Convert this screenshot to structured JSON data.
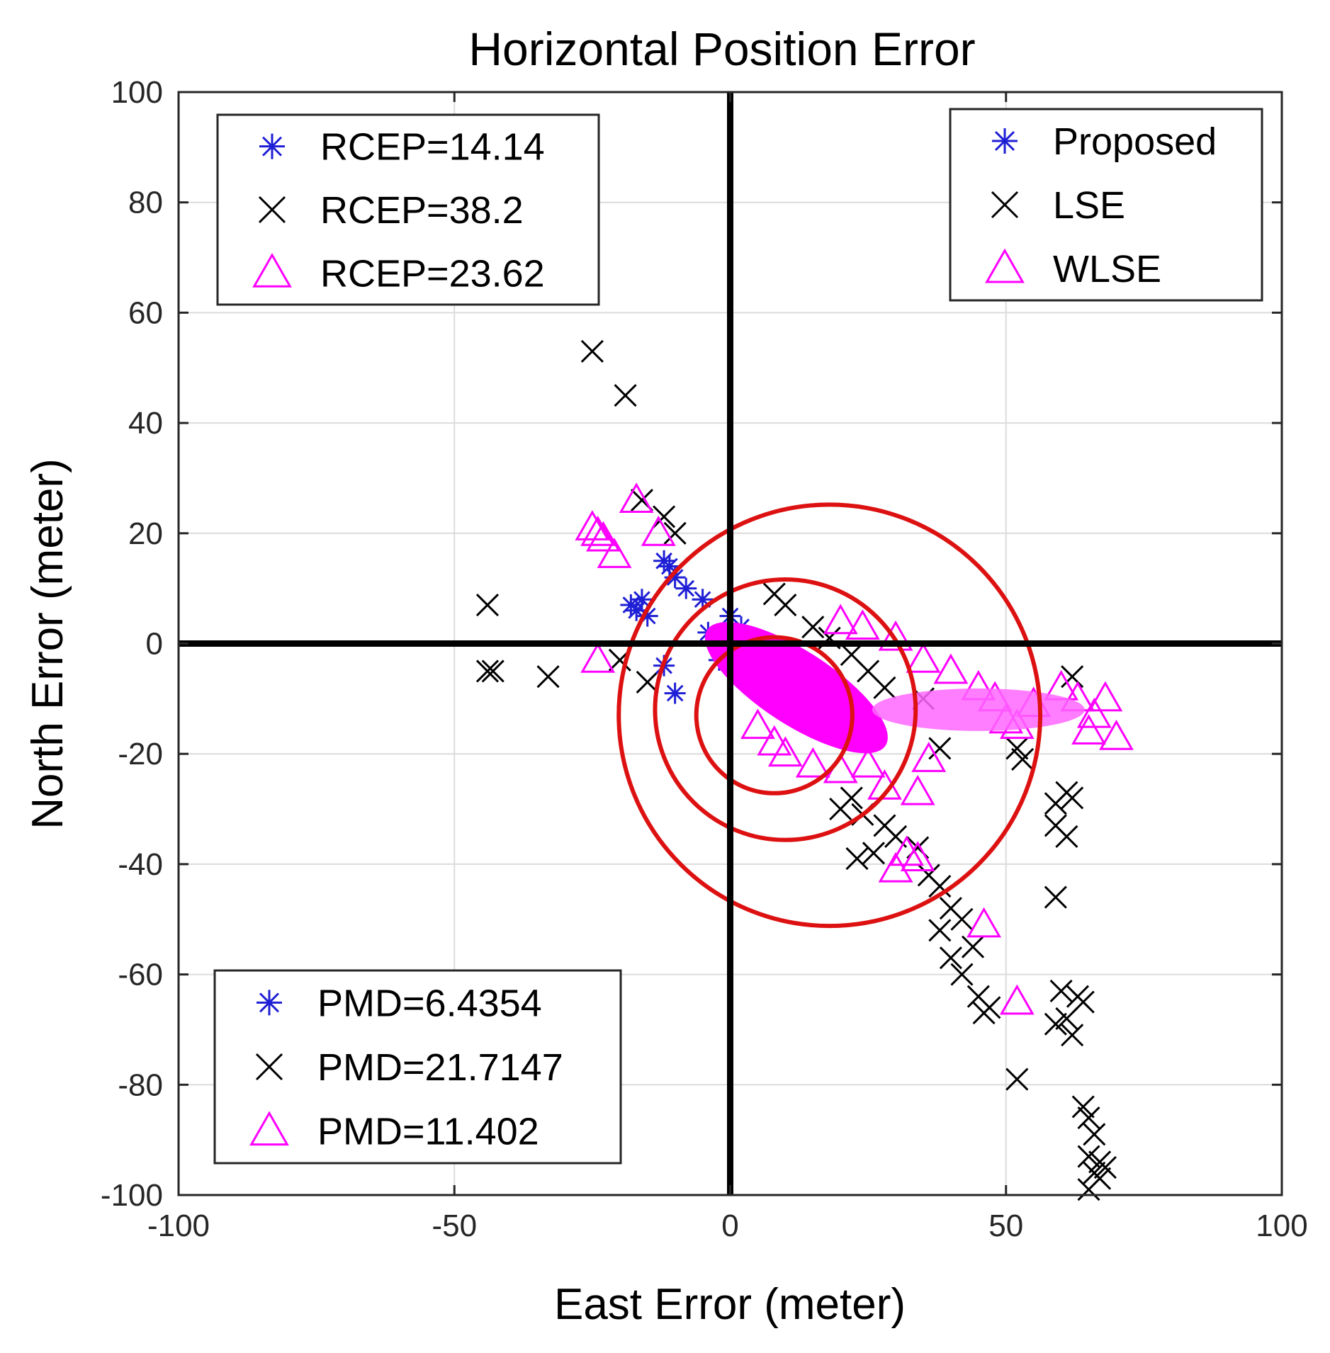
{
  "chart_data": {
    "type": "scatter",
    "title": "Horizontal Position Error",
    "xlabel": "East Error (meter)",
    "ylabel": "North Error (meter)",
    "xlim": [
      -100,
      100
    ],
    "ylim": [
      -100,
      100
    ],
    "xticks": [
      -100,
      -50,
      0,
      50,
      100
    ],
    "yticks": [
      -100,
      -80,
      -60,
      -40,
      -20,
      0,
      20,
      40,
      60,
      80,
      100
    ],
    "xtick_labels": [
      "-100",
      "-50",
      "0",
      "50",
      "100"
    ],
    "ytick_labels": [
      "-100",
      "-80",
      "-60",
      "-40",
      "-20",
      "0",
      "20",
      "40",
      "60",
      "80",
      "100"
    ],
    "grid": true,
    "series": [
      {
        "name": "Proposed",
        "marker": "asterisk",
        "color": "#1f1fd6",
        "points": [
          [
            -18,
            7
          ],
          [
            -17,
            6
          ],
          [
            -16,
            8
          ],
          [
            -15,
            5
          ],
          [
            -12,
            15
          ],
          [
            -11,
            14
          ],
          [
            -10,
            12
          ],
          [
            -12,
            -4
          ],
          [
            -10,
            -9
          ],
          [
            -8,
            10
          ],
          [
            -5,
            8
          ],
          [
            -4,
            2
          ],
          [
            -2,
            -3
          ],
          [
            0,
            5
          ],
          [
            2,
            3
          ],
          [
            3,
            1
          ],
          [
            5,
            -2
          ],
          [
            4,
            -5
          ],
          [
            6,
            -6
          ],
          [
            8,
            -8
          ]
        ]
      },
      {
        "name": "LSE",
        "marker": "x",
        "color": "#000000",
        "points": [
          [
            -25,
            53
          ],
          [
            -19,
            45
          ],
          [
            -16,
            26
          ],
          [
            -12,
            23
          ],
          [
            -10,
            20
          ],
          [
            -44,
            7
          ],
          [
            -44,
            -5
          ],
          [
            -43,
            -5
          ],
          [
            -33,
            -6
          ],
          [
            -20,
            -3
          ],
          [
            -15,
            -7
          ],
          [
            8,
            9
          ],
          [
            10,
            7
          ],
          [
            15,
            3
          ],
          [
            18,
            1
          ],
          [
            22,
            -2
          ],
          [
            25,
            -5
          ],
          [
            28,
            -8
          ],
          [
            35,
            -10
          ],
          [
            38,
            -19
          ],
          [
            62,
            -6
          ],
          [
            52,
            -19
          ],
          [
            53,
            -21
          ],
          [
            22,
            -28
          ],
          [
            20,
            -30
          ],
          [
            24,
            -31
          ],
          [
            28,
            -33
          ],
          [
            30,
            -35
          ],
          [
            34,
            -37
          ],
          [
            26,
            -38
          ],
          [
            23,
            -39
          ],
          [
            36,
            -42
          ],
          [
            38,
            -44
          ],
          [
            40,
            -48
          ],
          [
            42,
            -50
          ],
          [
            38,
            -52
          ],
          [
            44,
            -55
          ],
          [
            40,
            -57
          ],
          [
            42,
            -60
          ],
          [
            45,
            -64
          ],
          [
            47,
            -66
          ],
          [
            46,
            -67
          ],
          [
            52,
            -79
          ],
          [
            59,
            -29
          ],
          [
            61,
            -27
          ],
          [
            62,
            -28
          ],
          [
            59,
            -33
          ],
          [
            61,
            -35
          ],
          [
            59,
            -46
          ],
          [
            60,
            -63
          ],
          [
            63,
            -64
          ],
          [
            64,
            -65
          ],
          [
            61,
            -68
          ],
          [
            59,
            -69
          ],
          [
            62,
            -71
          ],
          [
            64,
            -84
          ],
          [
            65,
            -86
          ],
          [
            66,
            -89
          ],
          [
            65,
            -93
          ],
          [
            67,
            -94
          ],
          [
            66,
            -96
          ],
          [
            68,
            -95
          ],
          [
            67,
            -97
          ],
          [
            65,
            -99
          ]
        ]
      },
      {
        "name": "WLSE",
        "marker": "triangle",
        "color": "#ff00ff",
        "points": [
          [
            -17,
            26
          ],
          [
            -25,
            21
          ],
          [
            -24,
            20
          ],
          [
            -23,
            19
          ],
          [
            -21,
            16
          ],
          [
            -13,
            20
          ],
          [
            -24,
            -3
          ],
          [
            20,
            4
          ],
          [
            24,
            3
          ],
          [
            30,
            1
          ],
          [
            35,
            -3
          ],
          [
            40,
            -5
          ],
          [
            45,
            -8
          ],
          [
            48,
            -10
          ],
          [
            55,
            -11
          ],
          [
            60,
            -8
          ],
          [
            63,
            -10
          ],
          [
            68,
            -10
          ],
          [
            66,
            -13
          ],
          [
            65,
            -16
          ],
          [
            70,
            -17
          ],
          [
            50,
            -14
          ],
          [
            52,
            -15
          ],
          [
            36,
            -21
          ],
          [
            34,
            -27
          ],
          [
            32,
            -38
          ],
          [
            30,
            -41
          ],
          [
            34,
            -39
          ],
          [
            46,
            -51
          ],
          [
            52,
            -65
          ],
          [
            5,
            -15
          ],
          [
            8,
            -18
          ],
          [
            10,
            -20
          ],
          [
            15,
            -22
          ],
          [
            20,
            -23
          ],
          [
            25,
            -22
          ],
          [
            28,
            -26
          ]
        ]
      }
    ],
    "circles": [
      {
        "center": [
          8,
          -13
        ],
        "radius": 14.14,
        "color": "#dd1111"
      },
      {
        "center": [
          10,
          -12
        ],
        "radius": 23.62,
        "color": "#dd1111"
      },
      {
        "center": [
          18,
          -13
        ],
        "radius": 38.2,
        "color": "#dd1111"
      }
    ],
    "reference_lines": {
      "x": 0,
      "y": 0,
      "color": "#000000"
    },
    "legends": {
      "rcep": {
        "location": "top-left",
        "entries": [
          {
            "marker": "asterisk",
            "color": "#1f1fd6",
            "label": "RCEP=14.14"
          },
          {
            "marker": "x",
            "color": "#000000",
            "label": "RCEP=38.2"
          },
          {
            "marker": "triangle",
            "color": "#ff00ff",
            "label": "RCEP=23.62"
          }
        ]
      },
      "series": {
        "location": "top-right",
        "entries": [
          {
            "marker": "asterisk",
            "color": "#1f1fd6",
            "label": "Proposed"
          },
          {
            "marker": "x",
            "color": "#000000",
            "label": "LSE"
          },
          {
            "marker": "triangle",
            "color": "#ff00ff",
            "label": "WLSE"
          }
        ]
      },
      "pmd": {
        "location": "bottom-left",
        "entries": [
          {
            "marker": "asterisk",
            "color": "#1f1fd6",
            "label": "PMD=6.4354"
          },
          {
            "marker": "x",
            "color": "#000000",
            "label": "PMD=21.7147"
          },
          {
            "marker": "triangle",
            "color": "#ff00ff",
            "label": "PMD=11.402"
          }
        ]
      }
    }
  }
}
